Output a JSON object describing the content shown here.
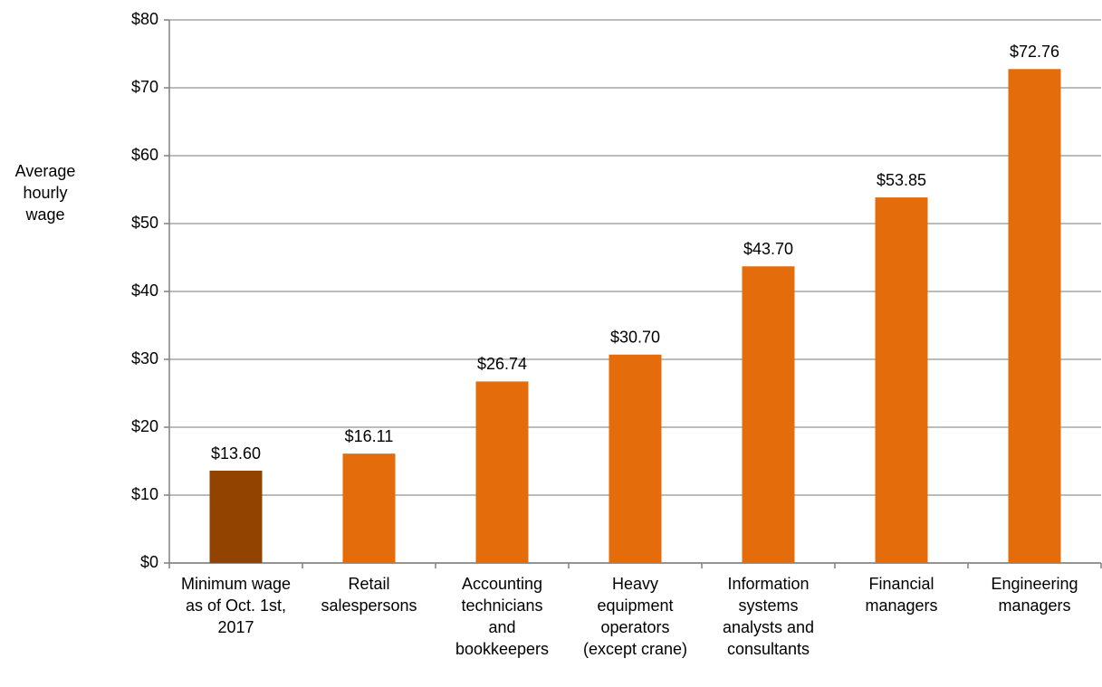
{
  "chart_data": {
    "type": "bar",
    "y_label": "Average\nhourly\nwage",
    "categories": [
      "Minimum wage\nas of Oct. 1st,\n2017",
      "Retail\nsalespersons",
      "Accounting\ntechnicians\nand\nbookkeepers",
      "Heavy\nequipment\noperators\n(except crane)",
      "Information\nsystems\nanalysts and\nconsultants",
      "Financial\nmanagers",
      "Engineering\nmanagers"
    ],
    "values": [
      13.6,
      16.11,
      26.74,
      30.7,
      43.7,
      53.85,
      72.76
    ],
    "value_labels": [
      "$13.60",
      "$16.11",
      "$26.74",
      "$30.70",
      "$43.70",
      "$53.85",
      "$72.76"
    ],
    "colors": [
      "#934300",
      "#e46c0a",
      "#e46c0a",
      "#e46c0a",
      "#e46c0a",
      "#e46c0a",
      "#e46c0a"
    ],
    "ylim": [
      0,
      80
    ],
    "yticks": [
      {
        "value": 0,
        "label": "$0"
      },
      {
        "value": 10,
        "label": "$10"
      },
      {
        "value": 20,
        "label": "$20"
      },
      {
        "value": 30,
        "label": "$30"
      },
      {
        "value": 40,
        "label": "$40"
      },
      {
        "value": 50,
        "label": "$50"
      },
      {
        "value": 60,
        "label": "$60"
      },
      {
        "value": 70,
        "label": "$70"
      },
      {
        "value": 80,
        "label": "$80"
      }
    ],
    "grid": true
  }
}
